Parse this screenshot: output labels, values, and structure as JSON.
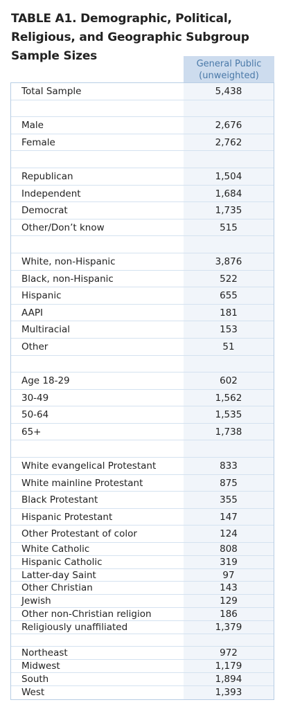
{
  "title": "TABLE A1. Demographic, Political, Religious, and Geographic Subgroup Sample Sizes",
  "column_header": "General Public (unweighted)",
  "rows": [
    {
      "label": "Total Sample",
      "value": "5,438",
      "h": "tall"
    },
    {
      "label": "",
      "value": "",
      "h": "tall"
    },
    {
      "label": "Male",
      "value": "2,676",
      "h": "tall"
    },
    {
      "label": "Female",
      "value": "2,762",
      "h": "tall"
    },
    {
      "label": "",
      "value": "",
      "h": "tall"
    },
    {
      "label": "Republican",
      "value": "1,504",
      "h": "tall"
    },
    {
      "label": "Independent",
      "value": "1,684",
      "h": "tall"
    },
    {
      "label": "Democrat",
      "value": "1,735",
      "h": "tall"
    },
    {
      "label": "Other/Don’t know",
      "value": "515",
      "h": "tall"
    },
    {
      "label": "",
      "value": "",
      "h": "tall"
    },
    {
      "label": "White, non-Hispanic",
      "value": "3,876",
      "h": "tall"
    },
    {
      "label": "Black, non-Hispanic",
      "value": "522",
      "h": "tall"
    },
    {
      "label": "Hispanic",
      "value": "655",
      "h": "tall"
    },
    {
      "label": "AAPI",
      "value": "181",
      "h": "tall"
    },
    {
      "label": "Multiracial",
      "value": "153",
      "h": "tall"
    },
    {
      "label": "Other",
      "value": "51",
      "h": "tall"
    },
    {
      "label": "",
      "value": "",
      "h": "tall"
    },
    {
      "label": "Age 18-29",
      "value": "602",
      "h": "tall"
    },
    {
      "label": "30-49",
      "value": "1,562",
      "h": "tall"
    },
    {
      "label": "50-64",
      "value": "1,535",
      "h": "tall"
    },
    {
      "label": "65+",
      "value": "1,738",
      "h": "tall"
    },
    {
      "label": "",
      "value": "",
      "h": "tall"
    },
    {
      "label": "White evangelical Protestant",
      "value": "833",
      "h": "tall"
    },
    {
      "label": "White mainline Protestant",
      "value": "875",
      "h": "tall"
    },
    {
      "label": "Black Protestant",
      "value": "355",
      "h": "tall"
    },
    {
      "label": "Hispanic Protestant",
      "value": "147",
      "h": "tall"
    },
    {
      "label": "Other Protestant of color",
      "value": "124",
      "h": "tall"
    },
    {
      "label": "White Catholic",
      "value": "808",
      "h": "short"
    },
    {
      "label": "Hispanic Catholic",
      "value": "319",
      "h": "short"
    },
    {
      "label": "Latter-day Saint",
      "value": "97",
      "h": "short"
    },
    {
      "label": "Other Christian",
      "value": "143",
      "h": "short"
    },
    {
      "label": "Jewish",
      "value": "129",
      "h": "short"
    },
    {
      "label": "Other non-Christian religion",
      "value": "186",
      "h": "short"
    },
    {
      "label": "Religiously unaffiliated",
      "value": "1,379",
      "h": "short"
    },
    {
      "label": "",
      "value": "",
      "h": "short"
    },
    {
      "label": "Northeast",
      "value": "972",
      "h": "short"
    },
    {
      "label": "Midwest",
      "value": "1,179",
      "h": "short"
    },
    {
      "label": "South",
      "value": "1,894",
      "h": "short"
    },
    {
      "label": "West",
      "value": "1,393",
      "h": "short"
    }
  ]
}
